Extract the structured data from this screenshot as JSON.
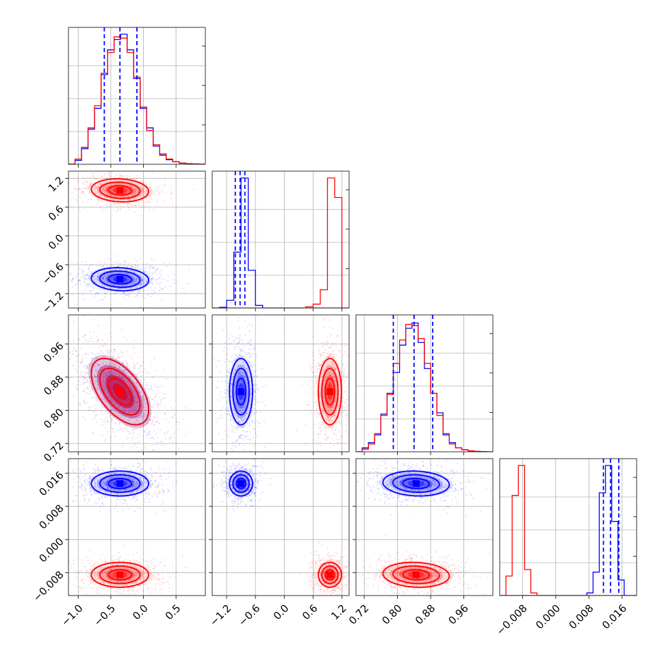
{
  "chart_data": {
    "type": "corner",
    "title": "",
    "grid": true,
    "colors": {
      "red": "#ff0000",
      "blue": "#0000ff"
    },
    "series": [
      {
        "color": "#ff0000",
        "means": [
          -0.36,
          0.95,
          0.845,
          -0.0085
        ],
        "stds": [
          0.22,
          0.12,
          0.04,
          0.0015
        ],
        "correlations": {
          "0_2": -0.55,
          "0_1": -0.1,
          "2_3": -0.1
        }
      },
      {
        "color": "#0000ff",
        "means": [
          -0.36,
          -0.9,
          0.845,
          0.0135
        ],
        "stds": [
          0.22,
          0.12,
          0.04,
          0.0015
        ],
        "correlations": {
          "0_2": -0.55,
          "0_1": -0.1,
          "2_3": -0.1
        }
      }
    ],
    "quantile_lines": {
      "color": "#0000ff",
      "style": "dashed",
      "values": [
        [
          -0.6,
          -0.36,
          -0.1
        ],
        [
          -1.02,
          -0.92,
          -0.82
        ],
        [
          0.79,
          0.84,
          0.885
        ],
        [
          0.0115,
          0.0132,
          0.0152
        ]
      ]
    },
    "axes": [
      {
        "range": [
          -1.15,
          0.95
        ],
        "ticks": [
          "−1.0",
          "−0.5",
          "0.0",
          "0.5"
        ],
        "tick_values": [
          -1.0,
          -0.5,
          0.0,
          0.5
        ]
      },
      {
        "range": [
          -1.5,
          1.35
        ],
        "ticks": [
          "−1.2",
          "−0.6",
          "0.0",
          "0.6",
          "1.2"
        ],
        "tick_values": [
          -1.2,
          -0.6,
          0.0,
          0.6,
          1.2
        ]
      },
      {
        "range": [
          0.7,
          1.03
        ],
        "ticks": [
          "0.72",
          "0.80",
          "0.88",
          "0.96"
        ],
        "tick_values": [
          0.72,
          0.8,
          0.88,
          0.96
        ]
      },
      {
        "range": [
          -0.0135,
          0.0195
        ],
        "ticks": [
          "−0.008",
          "0.000",
          "0.008",
          "0.016"
        ],
        "tick_values": [
          -0.008,
          0.0,
          0.008,
          0.016
        ]
      }
    ],
    "diagonal_histograms": [
      {
        "bins": [
          -1.15,
          -1.05,
          -0.95,
          -0.85,
          -0.75,
          -0.65,
          -0.55,
          -0.45,
          -0.35,
          -0.25,
          -0.15,
          -0.05,
          0.05,
          0.15,
          0.25,
          0.35,
          0.45,
          0.55,
          0.65,
          0.75,
          0.85,
          0.95
        ],
        "red": [
          0.002,
          0.04,
          0.13,
          0.28,
          0.45,
          0.7,
          0.86,
          0.98,
          0.97,
          0.86,
          0.67,
          0.44,
          0.26,
          0.15,
          0.08,
          0.04,
          0.02,
          0.01,
          0.005,
          0.003,
          0.001
        ],
        "blue": [
          0.002,
          0.03,
          0.12,
          0.27,
          0.43,
          0.69,
          0.88,
          0.96,
          1.0,
          0.88,
          0.66,
          0.43,
          0.28,
          0.14,
          0.07,
          0.035,
          0.02,
          0.008,
          0.004,
          0.002,
          0.001
        ]
      },
      {
        "bins": [
          -1.5,
          -1.35,
          -1.2,
          -1.05,
          -0.9,
          -0.75,
          -0.6,
          -0.45,
          -0.3,
          -0.15,
          0.0,
          0.15,
          0.3,
          0.45,
          0.6,
          0.75,
          0.9,
          1.05,
          1.2,
          1.35
        ],
        "red": [
          0,
          0,
          0,
          0,
          0,
          0,
          0,
          0,
          0,
          0,
          0,
          0,
          0,
          0.01,
          0.03,
          0.14,
          1.0,
          0.85,
          0.0
        ],
        "blue": [
          0.0,
          0.005,
          0.06,
          0.43,
          1.0,
          0.29,
          0.02,
          0.0,
          0,
          0,
          0,
          0,
          0,
          0,
          0,
          0,
          0,
          0,
          0
        ]
      },
      {
        "bins": [
          0.7,
          0.715,
          0.73,
          0.745,
          0.76,
          0.775,
          0.79,
          0.805,
          0.82,
          0.835,
          0.85,
          0.865,
          0.88,
          0.895,
          0.91,
          0.925,
          0.94,
          0.955,
          0.97,
          0.985,
          1.0,
          1.015,
          1.03
        ],
        "red": [
          0.0,
          0.02,
          0.06,
          0.14,
          0.28,
          0.44,
          0.68,
          0.86,
          0.98,
          0.97,
          0.87,
          0.68,
          0.45,
          0.28,
          0.14,
          0.06,
          0.03,
          0.015,
          0.008,
          0.003,
          0.001,
          0.0
        ],
        "blue": [
          0.0,
          0.03,
          0.07,
          0.13,
          0.29,
          0.45,
          0.61,
          0.82,
          0.95,
          0.99,
          0.84,
          0.64,
          0.45,
          0.3,
          0.13,
          0.07,
          0.03,
          0.016,
          0.007,
          0.003,
          0.001,
          0.0
        ]
      },
      {
        "bins": [
          -0.0135,
          -0.012,
          -0.0105,
          -0.009,
          -0.0075,
          -0.006,
          -0.0045,
          -0.003,
          -0.0015,
          0.0,
          0.0015,
          0.003,
          0.0045,
          0.006,
          0.0075,
          0.009,
          0.0105,
          0.012,
          0.0135,
          0.015,
          0.0165,
          0.018,
          0.0195
        ],
        "red": [
          0.0,
          0.15,
          0.77,
          1.0,
          0.2,
          0.02,
          0.0,
          0,
          0,
          0,
          0,
          0,
          0,
          0,
          0,
          0,
          0,
          0,
          0,
          0,
          0,
          0
        ],
        "blue": [
          0,
          0,
          0,
          0,
          0,
          0,
          0,
          0,
          0,
          0,
          0,
          0,
          0,
          0,
          0.02,
          0.18,
          0.79,
          1.0,
          0.57,
          0.12,
          0.0,
          0.0
        ]
      }
    ]
  }
}
